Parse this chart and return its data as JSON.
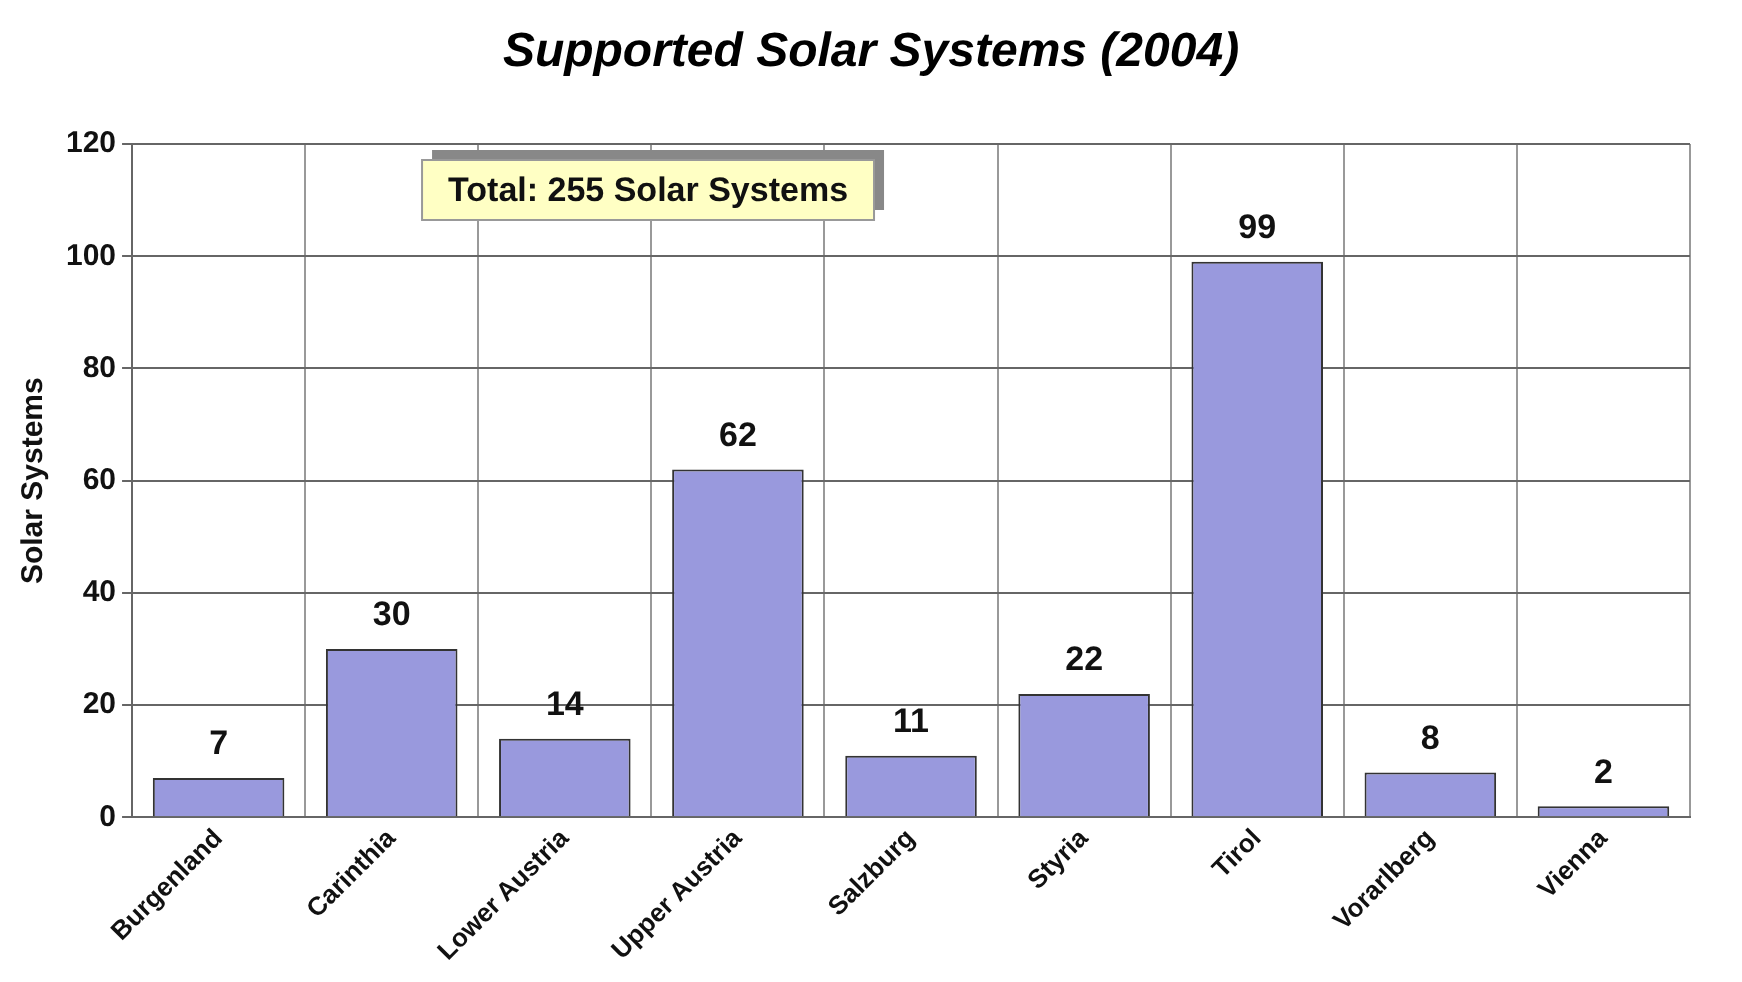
{
  "chart_data": {
    "type": "bar",
    "title": "Supported Solar Systems (2004)",
    "ylabel": "Solar Systems",
    "categories": [
      "Burgenland",
      "Carinthia",
      "Lower Austria",
      "Upper Austria",
      "Salzburg",
      "Styria",
      "Tirol",
      "Vorarlberg",
      "Vienna"
    ],
    "values": [
      7,
      30,
      14,
      62,
      11,
      22,
      99,
      8,
      2
    ],
    "color": "#9999dd",
    "ylim": [
      0,
      120
    ],
    "yticks": [
      0,
      20,
      40,
      60,
      80,
      100,
      120
    ],
    "grid": true,
    "data_labels": true,
    "legend": false,
    "annotations": [
      "Total: 255 Solar Systems"
    ]
  }
}
